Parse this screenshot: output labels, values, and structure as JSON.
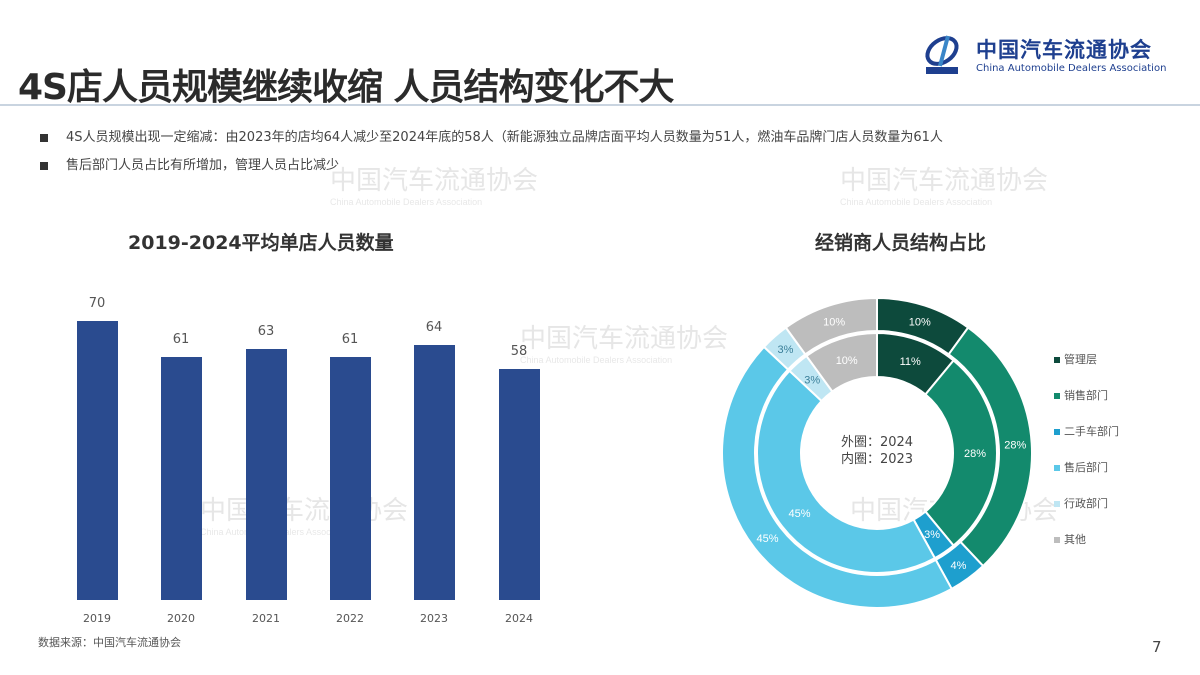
{
  "slide": {
    "title": "4S店人员规模继续收缩 人员结构变化不大",
    "page_number": "7",
    "logo": {
      "cn": "中国汽车流通协会",
      "en": "China Automobile Dealers Association",
      "mark_text": "CADA"
    },
    "watermark": {
      "cn": "中国汽车流通协会",
      "en": "China Automobile Dealers Association"
    },
    "bullets": [
      "4S人员规模出现一定缩减：由2023年的店均64人减少至2024年底的58人（新能源独立品牌店面平均人员数量为51人，燃油车品牌门店人员数量为61人",
      "售后部门人员占比有所增加，管理人员占比减少"
    ],
    "source": "数据来源：中国汽车流通协会"
  },
  "colors": {
    "bar": "#2a4b8f",
    "management": "#0d4a3c",
    "sales": "#138a6d",
    "used_car": "#1e9fce",
    "after_sales": "#5bc8e8",
    "admin": "#bfe6f3",
    "other": "#bdbdbd"
  },
  "chart_data": [
    {
      "type": "bar",
      "title": "2019-2024平均单店人员数量",
      "categories": [
        "2019",
        "2020",
        "2021",
        "2022",
        "2023",
        "2024"
      ],
      "values": [
        70,
        61,
        63,
        61,
        64,
        58
      ],
      "value_labels": [
        "70",
        "61",
        "63",
        "61",
        "64",
        "58"
      ],
      "xlabel": "",
      "ylabel": "",
      "ylim": [
        0,
        70
      ],
      "grid": false,
      "legend": "none"
    },
    {
      "type": "pie",
      "subtype": "double-donut",
      "title": "经销商人员结构占比",
      "center_label": [
        "外圈：2024",
        "内圈：2023"
      ],
      "categories": [
        "管理层",
        "销售部门",
        "二手车部门",
        "售后部门",
        "行政部门",
        "其他"
      ],
      "series": [
        {
          "name": "2024 (外圈)",
          "values": [
            10,
            28,
            4,
            45,
            3,
            10
          ],
          "labels": [
            "10%",
            "28%",
            "4%",
            "45%",
            "3%",
            "10%"
          ]
        },
        {
          "name": "2023 (内圈)",
          "values": [
            11,
            28,
            3,
            45,
            3,
            10
          ],
          "labels": [
            "11%",
            "28%",
            "3%",
            "45%",
            "3%",
            "10%"
          ]
        }
      ],
      "legend_position": "right"
    }
  ]
}
